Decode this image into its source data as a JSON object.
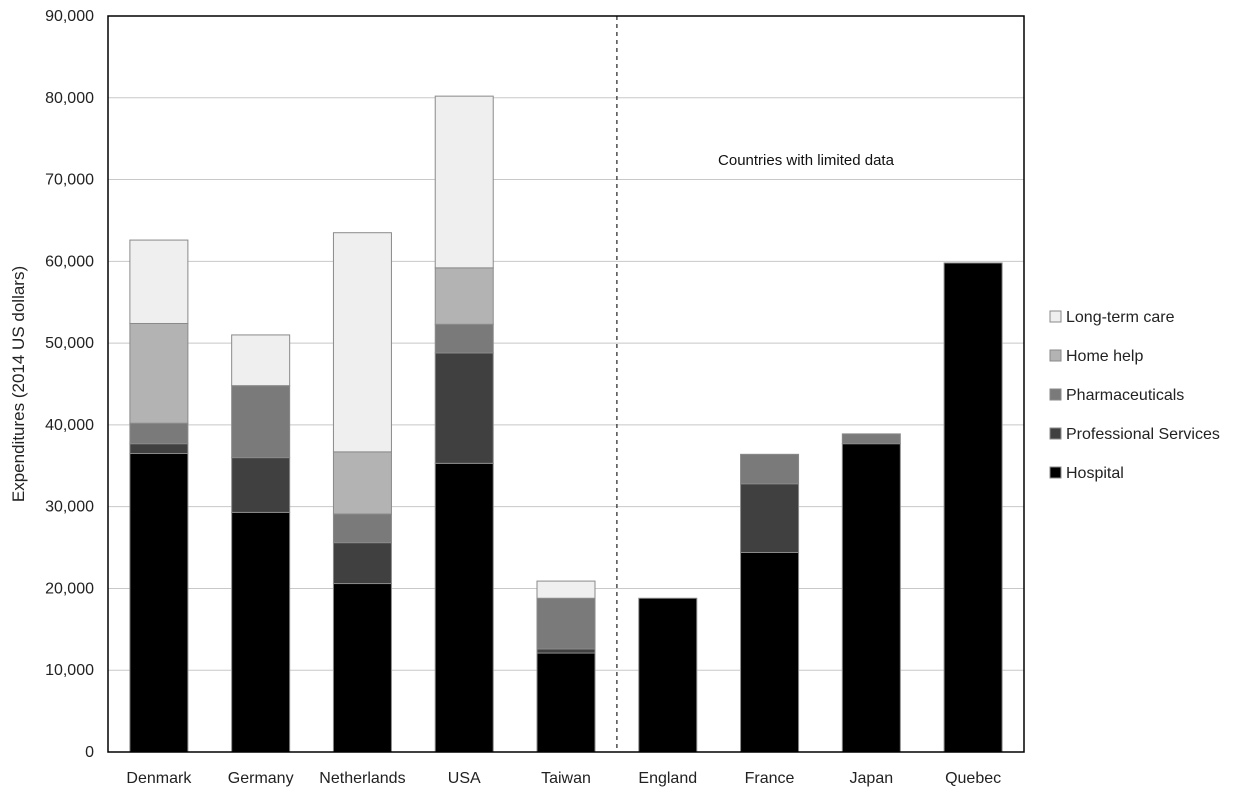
{
  "chart_data": {
    "type": "bar",
    "stacked": true,
    "title": "",
    "xlabel": "",
    "ylabel": "Expenditures (2014 US dollars)",
    "ylim": [
      0,
      90000
    ],
    "yticks": [
      0,
      10000,
      20000,
      30000,
      40000,
      50000,
      60000,
      70000,
      80000,
      90000
    ],
    "ytick_labels": [
      "0",
      "10,000",
      "20,000",
      "30,000",
      "40,000",
      "50,000",
      "60,000",
      "70,000",
      "80,000",
      "90,000"
    ],
    "grid": true,
    "legend_position": "right",
    "categories": [
      "Denmark",
      "Germany",
      "Netherlands",
      "USA",
      "Taiwan",
      "England",
      "France",
      "Japan",
      "Quebec"
    ],
    "series": [
      {
        "name": "Hospital",
        "color": "#000000",
        "values": [
          36500,
          29300,
          20600,
          35300,
          12100,
          18800,
          24400,
          37700,
          59800
        ]
      },
      {
        "name": "Professional Services",
        "color": "#404040",
        "values": [
          1200,
          6700,
          5000,
          13500,
          500,
          0,
          8400,
          0,
          0
        ]
      },
      {
        "name": "Pharmaceuticals",
        "color": "#7a7a7a",
        "values": [
          2500,
          8800,
          3500,
          3500,
          6200,
          0,
          3600,
          1200,
          0
        ]
      },
      {
        "name": "Home help",
        "color": "#b3b3b3",
        "values": [
          12200,
          0,
          7600,
          6900,
          0,
          0,
          0,
          0,
          0
        ]
      },
      {
        "name": "Long-term care",
        "color": "#efefef",
        "values": [
          10200,
          6200,
          26800,
          21000,
          2100,
          0,
          0,
          0,
          0
        ]
      }
    ],
    "legend_order": [
      "Long-term care",
      "Home help",
      "Pharmaceuticals",
      "Professional Services",
      "Hospital"
    ],
    "divider_after_category": "Taiwan",
    "annotations": [
      "Countries with limited data"
    ]
  }
}
